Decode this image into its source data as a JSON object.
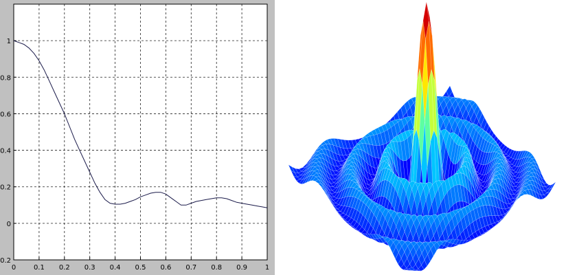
{
  "chart_data": [
    {
      "type": "line",
      "title": "",
      "xlabel": "",
      "ylabel": "",
      "xlim": [
        0,
        1
      ],
      "ylim": [
        -0.2,
        1.2
      ],
      "grid": true,
      "x_ticks": [
        "0",
        "0.1",
        "0.2",
        "0.3",
        "0.4",
        "0.5",
        "0.6",
        "0.7",
        "0.8",
        "0.9",
        "1"
      ],
      "y_ticks": [
        "-0.2",
        "0",
        "0.2",
        "0.4",
        "0.6",
        "0.8",
        "1"
      ],
      "colors": {
        "line": "#1a1a4a",
        "frame_bg": "#c0c0c0",
        "plot_bg": "#ffffff",
        "grid": "#222222"
      },
      "series": [
        {
          "x": [
            0,
            0.02,
            0.04,
            0.06,
            0.08,
            0.1,
            0.12,
            0.14,
            0.16,
            0.18,
            0.2,
            0.22,
            0.24,
            0.26,
            0.28,
            0.3,
            0.32,
            0.34,
            0.36,
            0.38,
            0.4,
            0.42,
            0.44,
            0.46,
            0.48,
            0.5,
            0.52,
            0.54,
            0.56,
            0.58,
            0.6,
            0.62,
            0.64,
            0.66,
            0.68,
            0.7,
            0.72,
            0.74,
            0.76,
            0.78,
            0.8,
            0.82,
            0.84,
            0.86,
            0.88,
            0.9,
            0.92,
            0.94,
            0.96,
            0.98,
            1.0
          ],
          "values": [
            1.0,
            0.99,
            0.98,
            0.96,
            0.93,
            0.89,
            0.84,
            0.78,
            0.72,
            0.66,
            0.6,
            0.53,
            0.46,
            0.4,
            0.34,
            0.28,
            0.22,
            0.17,
            0.13,
            0.11,
            0.105,
            0.105,
            0.11,
            0.12,
            0.13,
            0.145,
            0.155,
            0.165,
            0.17,
            0.17,
            0.16,
            0.14,
            0.12,
            0.1,
            0.1,
            0.11,
            0.12,
            0.125,
            0.13,
            0.135,
            0.14,
            0.14,
            0.135,
            0.125,
            0.115,
            0.11,
            0.105,
            0.1,
            0.095,
            0.09,
            0.085
          ]
        }
      ]
    },
    {
      "type": "surface3d",
      "title": "",
      "colormap": [
        "#0000aa",
        "#0000ff",
        "#00aaff",
        "#00ffff",
        "#aaff55",
        "#ffff00",
        "#ff8800",
        "#ff0000",
        "#880000"
      ],
      "mesh_color": "#ffffff"
    }
  ]
}
